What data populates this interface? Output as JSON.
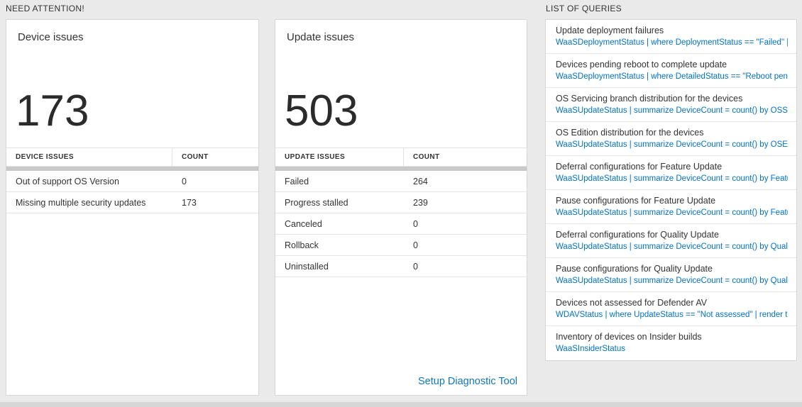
{
  "need_attention": {
    "label": "NEED ATTENTION!"
  },
  "queries_section": {
    "label": "LIST OF QUERIES"
  },
  "device_card": {
    "title": "Device issues",
    "big_number": "173",
    "headers": [
      "DEVICE ISSUES",
      "COUNT"
    ],
    "rows": [
      {
        "label": "Out of support OS Version",
        "count": "0"
      },
      {
        "label": "Missing multiple security updates",
        "count": "173"
      }
    ]
  },
  "update_card": {
    "title": "Update issues",
    "big_number": "503",
    "headers": [
      "UPDATE ISSUES",
      "COUNT"
    ],
    "rows": [
      {
        "label": "Failed",
        "count": "264"
      },
      {
        "label": "Progress stalled",
        "count": "239"
      },
      {
        "label": "Canceled",
        "count": "0"
      },
      {
        "label": "Rollback",
        "count": "0"
      },
      {
        "label": "Uninstalled",
        "count": "0"
      }
    ],
    "footer_link": "Setup Diagnostic Tool"
  },
  "queries": [
    {
      "title": "Update deployment failures",
      "query": "WaaSDeploymentStatus | where DeploymentStatus == \"Failed\" |..."
    },
    {
      "title": "Devices pending reboot to complete update",
      "query": "WaaSDeploymentStatus | where DetailedStatus == \"Reboot pend..."
    },
    {
      "title": "OS Servicing branch distribution for the devices",
      "query": "WaaSUpdateStatus | summarize DeviceCount = count() by OSSer..."
    },
    {
      "title": "OS Edition distribution for the devices",
      "query": "WaaSUpdateStatus | summarize DeviceCount = count() by OSEdit..."
    },
    {
      "title": "Deferral configurations for Feature Update",
      "query": "WaaSUpdateStatus | summarize DeviceCount = count() by Featur..."
    },
    {
      "title": "Pause configurations for Feature Update",
      "query": "WaaSUpdateStatus | summarize DeviceCount = count() by Featur..."
    },
    {
      "title": "Deferral configurations for Quality Update",
      "query": "WaaSUpdateStatus | summarize DeviceCount = count() by Qualit..."
    },
    {
      "title": "Pause configurations for Quality Update",
      "query": "WaaSUpdateStatus | summarize DeviceCount = count() by Qualit..."
    },
    {
      "title": "Devices not assessed for Defender AV",
      "query": "WDAVStatus | where UpdateStatus == \"Not assessed\" | render ta..."
    },
    {
      "title": "Inventory of devices on Insider builds",
      "query": "WaaSInsiderStatus"
    }
  ],
  "colors": {
    "query_link_blue": "#0072c6",
    "footer_link_blue": "#1076bc",
    "page_background": "#eaeaea"
  }
}
